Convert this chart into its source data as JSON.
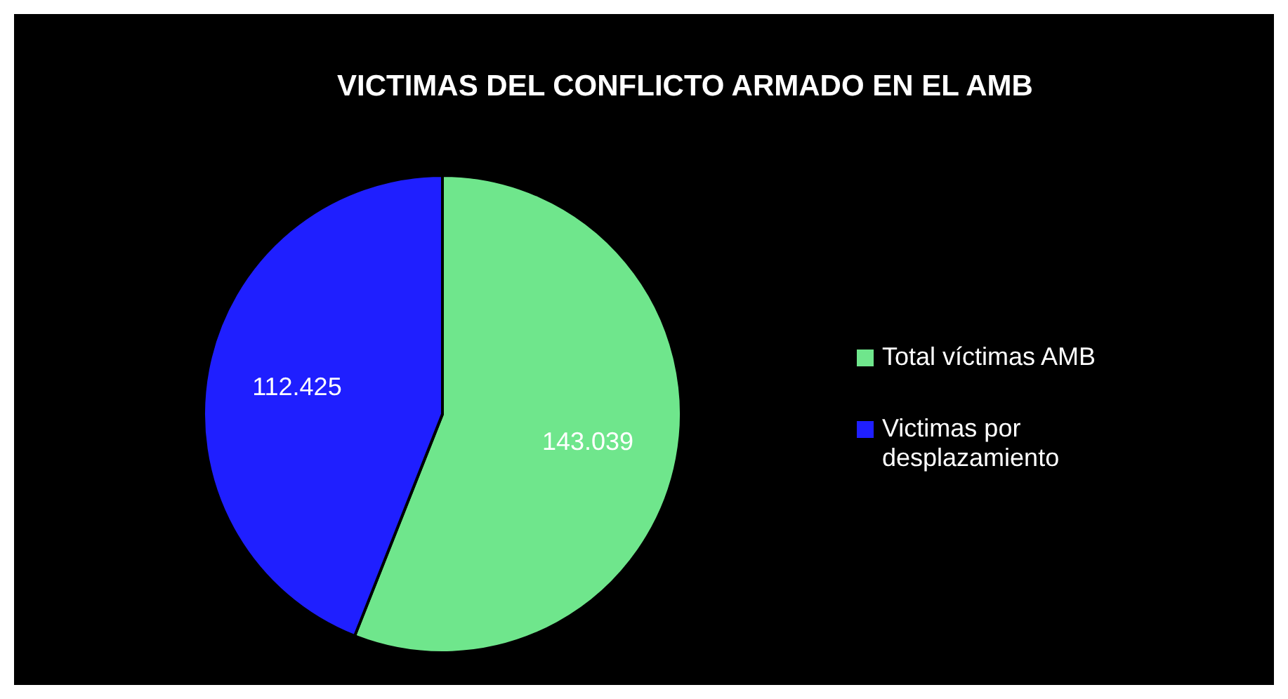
{
  "chart_data": {
    "type": "pie",
    "title": "VICTIMAS DEL CONFLICTO ARMADO EN EL AMB",
    "categories": [
      "Total víctimas AMB",
      "Victimas por desplazamiento"
    ],
    "values": [
      143039,
      112425
    ],
    "colors": [
      "#6fe68c",
      "#1f1fff"
    ],
    "value_labels": [
      "143.039",
      "112.425"
    ],
    "legend": "right"
  }
}
